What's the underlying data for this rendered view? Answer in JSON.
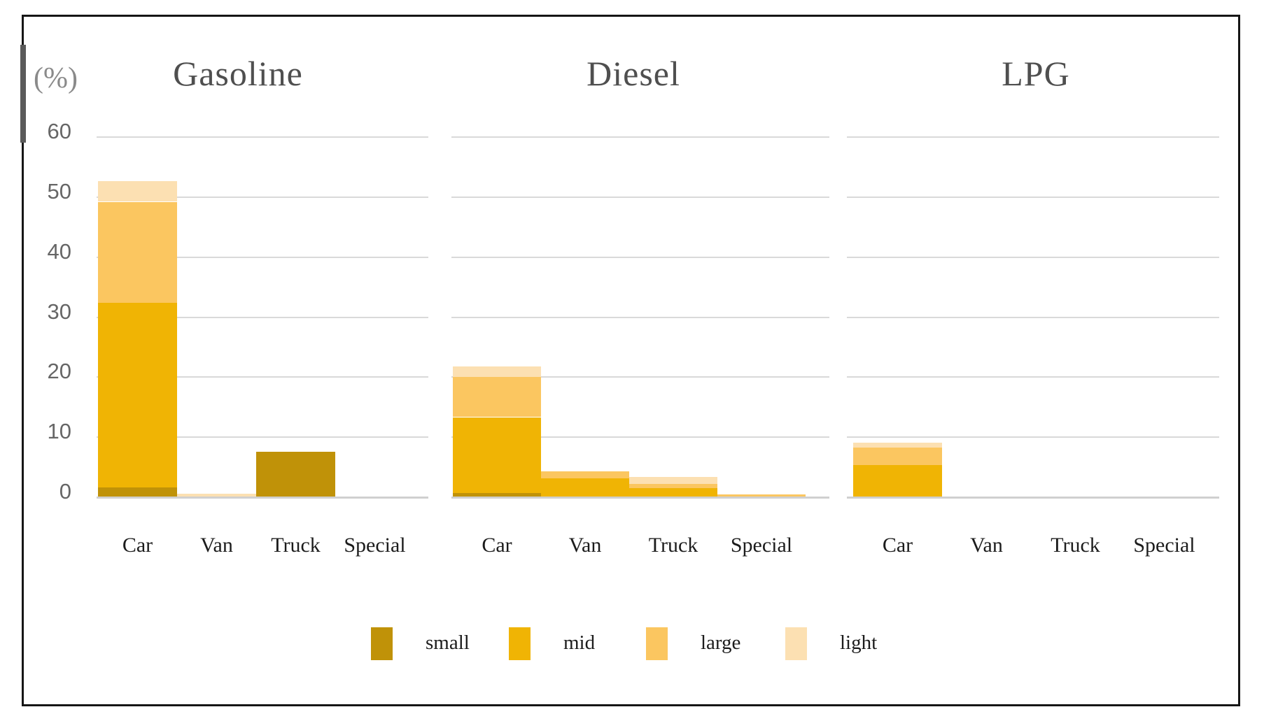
{
  "unit_label": "(%)",
  "chart_data": {
    "type": "bar",
    "subtype": "stacked-bar-three-panels",
    "unit": "%",
    "ylim": [
      0,
      60
    ],
    "y_ticks": [
      60,
      50,
      40,
      30,
      20,
      10,
      0
    ],
    "grid": true,
    "categories": [
      "Car",
      "Van",
      "Truck",
      "Special"
    ],
    "series_names": [
      "small",
      "mid",
      "large",
      "light"
    ],
    "series_colors": {
      "small": "#C09208",
      "mid": "#F0B404",
      "large": "#FBC660",
      "light": "#FCE0B2"
    },
    "panels": [
      {
        "title": "Gasoline",
        "values": {
          "small": [
            1.5,
            0,
            7.5,
            0
          ],
          "mid": [
            30.8,
            0,
            0,
            0
          ],
          "large": [
            16.8,
            0,
            0,
            0
          ],
          "light": [
            3.4,
            0.5,
            0,
            0
          ]
        }
      },
      {
        "title": "Diesel",
        "values": {
          "small": [
            0.6,
            0,
            0,
            0
          ],
          "mid": [
            12.6,
            3.0,
            1.4,
            0
          ],
          "large": [
            6.8,
            1.2,
            0.7,
            0.4
          ],
          "light": [
            1.7,
            0,
            1.2,
            0
          ]
        }
      },
      {
        "title": "LPG",
        "values": {
          "small": [
            0,
            0,
            0,
            0
          ],
          "mid": [
            5.3,
            0,
            0,
            0
          ],
          "large": [
            2.9,
            0,
            0,
            0
          ],
          "light": [
            0.8,
            0,
            0,
            0
          ]
        }
      }
    ],
    "legend": [
      "small",
      "mid",
      "large",
      "light"
    ],
    "legend_position": "bottom"
  },
  "colors": {
    "gridline": "#D9D9D9",
    "baseline": "#D0D0D0",
    "border": "#161616",
    "title_text": "#4F4F4F",
    "tick_text": "#666666",
    "category_text": "#1C1C1C",
    "legend_text": "#1C1C1C",
    "unit_text": "#8A8A8A"
  }
}
